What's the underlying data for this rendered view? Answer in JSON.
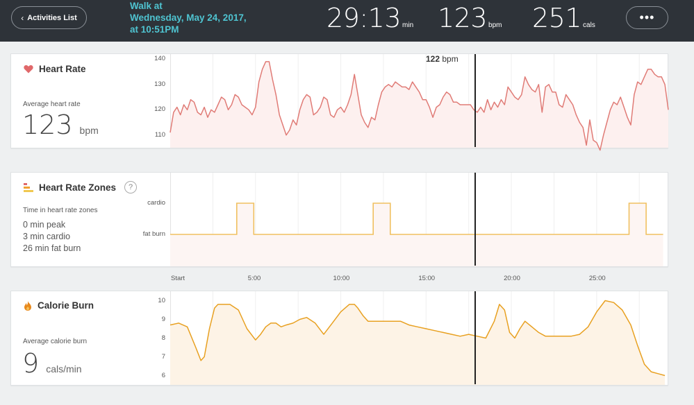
{
  "header": {
    "back_label": "Activities List",
    "activity_title_line1": "Walk at",
    "activity_title_line2": "Wednesday, May 24, 2017,",
    "activity_title_line3": "at 10:51PM",
    "duration_value": "29:13",
    "duration_unit": "min",
    "heart_value": "123",
    "heart_unit": "bpm",
    "calories_value": "251",
    "calories_unit": "cals",
    "more_label": "•••"
  },
  "colors": {
    "header_bg": "#2e3339",
    "title_accent": "#4fc4d1",
    "heart_line": "#e07b76",
    "heart_fill": "#fdf0ef",
    "zone_line": "#f0c060",
    "zone_fill": "#fdf5f3",
    "calorie_line": "#e8a020",
    "calorie_fill": "#fdf3e6"
  },
  "heart_rate_card": {
    "title": "Heart Rate",
    "icon": "heart-icon",
    "avg_label": "Average heart rate",
    "avg_value": "123",
    "avg_unit": "bpm",
    "cursor_value": "122",
    "cursor_unit": "bpm"
  },
  "zones_card": {
    "title": "Heart Rate Zones",
    "icon": "zones-icon",
    "help": "?",
    "subtitle": "Time in heart rate zones",
    "peak": "0 min peak",
    "cardio": "3 min cardio",
    "fat_burn": "26 min fat burn"
  },
  "calorie_card": {
    "title": "Calorie Burn",
    "icon": "flame-icon",
    "avg_label": "Average calorie burn",
    "avg_value": "9",
    "avg_unit": "cals/min"
  },
  "chart_data": [
    {
      "type": "line",
      "name": "heart_rate",
      "x_unit": "min",
      "xlim": [
        0,
        29.2
      ],
      "ylim": [
        105,
        142
      ],
      "yticks": [
        "110",
        "120",
        "130",
        "140"
      ],
      "ytick_values": [
        110,
        120,
        130,
        140
      ],
      "cursor_x": 17.6,
      "x": [
        0.0,
        0.2,
        0.4,
        0.6,
        0.8,
        1.0,
        1.2,
        1.4,
        1.6,
        1.8,
        2.0,
        2.2,
        2.4,
        2.6,
        2.8,
        3.0,
        3.2,
        3.4,
        3.6,
        3.8,
        4.0,
        4.2,
        4.4,
        4.6,
        4.8,
        5.0,
        5.2,
        5.4,
        5.6,
        5.8,
        6.0,
        6.2,
        6.4,
        6.6,
        6.8,
        7.0,
        7.2,
        7.4,
        7.6,
        7.8,
        8.0,
        8.2,
        8.4,
        8.6,
        8.8,
        9.0,
        9.2,
        9.4,
        9.6,
        9.8,
        10.0,
        10.2,
        10.4,
        10.6,
        10.8,
        11.0,
        11.2,
        11.4,
        11.6,
        11.8,
        12.0,
        12.2,
        12.4,
        12.6,
        12.8,
        13.0,
        13.2,
        13.4,
        13.6,
        13.8,
        14.0,
        14.2,
        14.4,
        14.6,
        14.8,
        15.0,
        15.2,
        15.4,
        15.6,
        15.8,
        16.0,
        16.2,
        16.4,
        16.6,
        16.8,
        17.0,
        17.2,
        17.4,
        17.6,
        17.8,
        18.0,
        18.2,
        18.4,
        18.6,
        18.8,
        19.0,
        19.2,
        19.4,
        19.6,
        19.8,
        20.0,
        20.2,
        20.4,
        20.6,
        20.8,
        21.0,
        21.2,
        21.4,
        21.6,
        21.8,
        22.0,
        22.2,
        22.4,
        22.6,
        22.8,
        23.0,
        23.2,
        23.4,
        23.6,
        23.8,
        24.0,
        24.2,
        24.4,
        24.6,
        24.8,
        25.0,
        25.2,
        25.4,
        25.6,
        25.8,
        26.0,
        26.2,
        26.4,
        26.6,
        26.8,
        27.0,
        27.2,
        27.4,
        27.6,
        27.8,
        28.0,
        28.2,
        28.4,
        28.6,
        28.8,
        29.0,
        29.2
      ],
      "y": [
        111,
        119,
        121,
        118,
        122,
        120,
        124,
        123,
        119,
        118,
        121,
        117,
        120,
        119,
        122,
        125,
        124,
        120,
        122,
        126,
        125,
        122,
        121,
        120,
        118,
        121,
        131,
        136,
        139,
        139,
        132,
        126,
        118,
        114,
        110,
        112,
        116,
        114,
        120,
        124,
        126,
        125,
        118,
        119,
        121,
        125,
        124,
        118,
        117,
        120,
        121,
        119,
        122,
        126,
        134,
        126,
        118,
        115,
        113,
        117,
        116,
        122,
        127,
        129,
        130,
        129,
        131,
        130,
        129,
        129,
        128,
        131,
        129,
        127,
        124,
        124,
        121,
        117,
        121,
        122,
        125,
        127,
        126,
        123,
        123,
        122,
        122,
        122,
        122,
        120,
        119,
        121,
        119,
        124,
        120,
        123,
        121,
        124,
        122,
        129,
        127,
        125,
        124,
        126,
        133,
        130,
        128,
        127,
        130,
        119,
        129,
        130,
        127,
        127,
        122,
        121,
        126,
        124,
        122,
        118,
        115,
        113,
        106,
        116,
        108,
        107,
        104,
        110,
        115,
        120,
        123,
        122,
        125,
        121,
        117,
        114,
        126,
        131,
        130,
        133,
        136,
        136,
        134,
        133,
        133,
        130,
        120
      ]
    },
    {
      "type": "line",
      "name": "heart_rate_zones",
      "step": true,
      "x_unit": "min",
      "xlim": [
        0,
        29.2
      ],
      "categories": [
        "fat burn",
        "cardio"
      ],
      "yticks": [
        "cardio",
        "fat burn"
      ],
      "cursor_x": 17.6,
      "x": [
        0.0,
        3.9,
        3.9,
        4.9,
        4.9,
        11.9,
        11.9,
        12.9,
        12.9,
        26.9,
        26.9,
        27.9,
        27.9,
        28.9
      ],
      "y": [
        0,
        0,
        1,
        1,
        0,
        0,
        1,
        1,
        0,
        0,
        1,
        1,
        0,
        0
      ],
      "xticks": [
        "Start",
        "5:00",
        "10:00",
        "15:00",
        "20:00",
        "25:00"
      ],
      "xtick_values": [
        0,
        5,
        10,
        15,
        20,
        25
      ]
    },
    {
      "type": "line",
      "name": "calorie_burn",
      "x_unit": "min",
      "xlim": [
        0,
        29.2
      ],
      "ylim": [
        5.5,
        10.5
      ],
      "yticks": [
        "6",
        "7",
        "8",
        "9",
        "10"
      ],
      "ytick_values": [
        6,
        7,
        8,
        9,
        10
      ],
      "cursor_x": 17.6,
      "x": [
        0.0,
        0.5,
        1.0,
        1.5,
        1.8,
        2.0,
        2.3,
        2.6,
        2.8,
        3.0,
        3.5,
        4.0,
        4.5,
        5.0,
        5.3,
        5.6,
        5.9,
        6.2,
        6.5,
        6.8,
        7.2,
        7.6,
        8.0,
        8.5,
        9.0,
        9.5,
        10.0,
        10.5,
        10.8,
        11.0,
        11.3,
        11.6,
        12.0,
        12.5,
        13.0,
        13.5,
        14.0,
        14.5,
        15.0,
        15.5,
        16.0,
        16.5,
        17.0,
        17.5,
        18.0,
        18.5,
        19.0,
        19.3,
        19.6,
        19.9,
        20.2,
        20.5,
        20.8,
        21.2,
        21.6,
        22.0,
        22.5,
        23.0,
        23.5,
        24.0,
        24.5,
        25.0,
        25.5,
        26.0,
        26.5,
        27.0,
        27.4,
        27.8,
        28.2,
        28.6,
        29.0
      ],
      "y": [
        8.7,
        8.8,
        8.6,
        7.5,
        6.8,
        7.0,
        8.5,
        9.6,
        9.8,
        9.8,
        9.8,
        9.5,
        8.5,
        7.9,
        8.2,
        8.6,
        8.8,
        8.8,
        8.6,
        8.7,
        8.8,
        9.0,
        9.1,
        8.8,
        8.2,
        8.8,
        9.4,
        9.8,
        9.8,
        9.6,
        9.2,
        8.9,
        8.9,
        8.9,
        8.9,
        8.9,
        8.7,
        8.6,
        8.5,
        8.4,
        8.3,
        8.2,
        8.1,
        8.2,
        8.1,
        8.0,
        8.9,
        9.8,
        9.5,
        8.3,
        8.0,
        8.5,
        8.9,
        8.6,
        8.3,
        8.1,
        8.1,
        8.1,
        8.1,
        8.2,
        8.6,
        9.4,
        10.0,
        9.9,
        9.5,
        8.7,
        7.6,
        6.6,
        6.2,
        6.1,
        6.0
      ]
    }
  ]
}
